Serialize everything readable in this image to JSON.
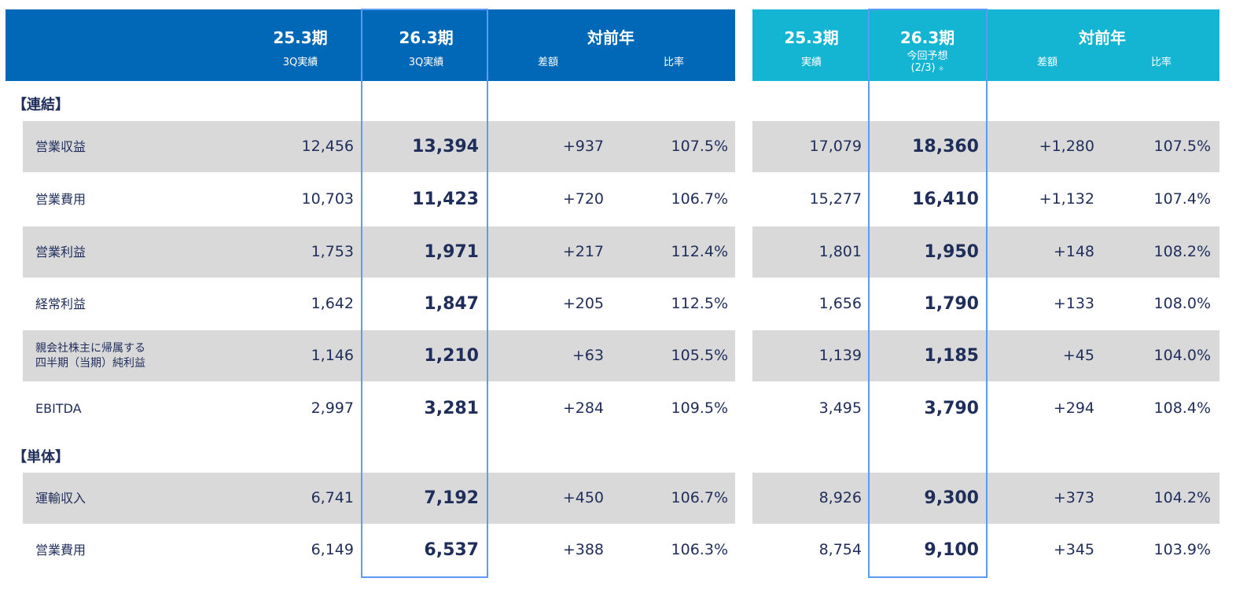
{
  "header_left": {
    "col1": {
      "title": "25.3期",
      "sub": "3Q実績"
    },
    "col2": {
      "title": "26.3期",
      "sub": "3Q実績"
    },
    "yoy": {
      "title": "対前年",
      "diff": "差額",
      "ratio": "比率"
    }
  },
  "header_right": {
    "col1": {
      "title": "25.3期",
      "sub": "実績"
    },
    "col2": {
      "title": "26.3期",
      "sub": "今回予想",
      "sub2": "(2/3)",
      "note": "※"
    },
    "yoy": {
      "title": "対前年",
      "diff": "差額",
      "ratio": "比率"
    }
  },
  "colors": {
    "left_header": "#0068b7",
    "right_header": "#13b5d3",
    "highlight": "#5b9bf5"
  },
  "sections": [
    {
      "label": "【連結】"
    },
    {
      "label": "【単体】"
    }
  ],
  "rows": [
    {
      "label": "営業収益",
      "l": [
        "12,456",
        "13,394",
        "+937",
        "107.5%"
      ],
      "r": [
        "17,079",
        "18,360",
        "+1,280",
        "107.5%"
      ]
    },
    {
      "label": "営業費用",
      "l": [
        "10,703",
        "11,423",
        "+720",
        "106.7%"
      ],
      "r": [
        "15,277",
        "16,410",
        "+1,132",
        "107.4%"
      ]
    },
    {
      "label": "営業利益",
      "l": [
        "1,753",
        "1,971",
        "+217",
        "112.4%"
      ],
      "r": [
        "1,801",
        "1,950",
        "+148",
        "108.2%"
      ]
    },
    {
      "label": "経常利益",
      "l": [
        "1,642",
        "1,847",
        "+205",
        "112.5%"
      ],
      "r": [
        "1,656",
        "1,790",
        "+133",
        "108.0%"
      ]
    },
    {
      "label": "親会社株主に帰属する\n四半期（当期）純利益",
      "l": [
        "1,146",
        "1,210",
        "+63",
        "105.5%"
      ],
      "r": [
        "1,139",
        "1,185",
        "+45",
        "104.0%"
      ]
    },
    {
      "label": "EBITDA",
      "l": [
        "2,997",
        "3,281",
        "+284",
        "109.5%"
      ],
      "r": [
        "3,495",
        "3,790",
        "+294",
        "108.4%"
      ]
    },
    {
      "label": "運輸収入",
      "l": [
        "6,741",
        "7,192",
        "+450",
        "106.7%"
      ],
      "r": [
        "8,926",
        "9,300",
        "+373",
        "104.2%"
      ]
    },
    {
      "label": "営業費用",
      "l": [
        "6,149",
        "6,537",
        "+388",
        "106.3%"
      ],
      "r": [
        "8,754",
        "9,100",
        "+345",
        "103.9%"
      ]
    }
  ]
}
